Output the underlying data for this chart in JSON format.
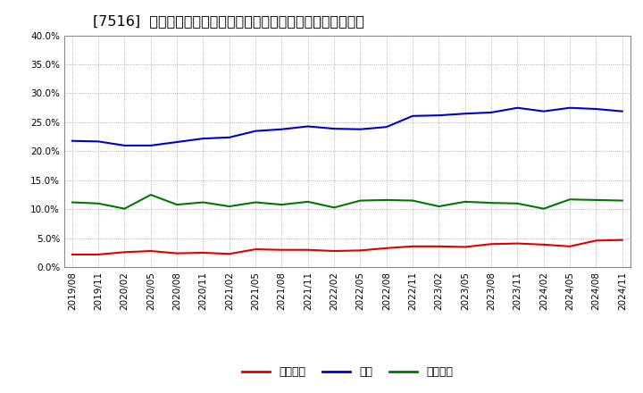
{
  "title": "[7516]  売上債権、在庫、買入債務の総資産に対する比率の推移",
  "x_labels": [
    "2019/08",
    "2019/11",
    "2020/02",
    "2020/05",
    "2020/08",
    "2020/11",
    "2021/02",
    "2021/05",
    "2021/08",
    "2021/11",
    "2022/02",
    "2022/05",
    "2022/08",
    "2022/11",
    "2023/02",
    "2023/05",
    "2023/08",
    "2023/11",
    "2024/02",
    "2024/05",
    "2024/08",
    "2024/11"
  ],
  "receivables": [
    2.2,
    2.2,
    2.6,
    2.8,
    2.4,
    2.5,
    2.3,
    3.1,
    3.0,
    3.0,
    2.8,
    2.9,
    3.3,
    3.6,
    3.6,
    3.5,
    4.0,
    4.1,
    3.9,
    3.6,
    4.6,
    4.7
  ],
  "inventory": [
    21.8,
    21.7,
    21.0,
    21.0,
    21.6,
    22.2,
    22.4,
    23.5,
    23.8,
    24.3,
    23.9,
    23.8,
    24.2,
    26.1,
    26.2,
    26.5,
    26.7,
    27.5,
    26.9,
    27.5,
    27.3,
    26.9
  ],
  "payables": [
    11.2,
    11.0,
    10.1,
    12.5,
    10.8,
    11.2,
    10.5,
    11.2,
    10.8,
    11.3,
    10.3,
    11.5,
    11.6,
    11.5,
    10.5,
    11.3,
    11.1,
    11.0,
    10.1,
    11.7,
    11.6,
    11.5
  ],
  "receivables_color": "#dd0000",
  "inventory_color": "#0000cc",
  "payables_color": "#007700",
  "ylim": [
    0,
    40
  ],
  "yticks": [
    0.0,
    5.0,
    10.0,
    15.0,
    20.0,
    25.0,
    30.0,
    35.0,
    40.0
  ],
  "legend_labels": [
    "売上債権",
    "在庫",
    "買入債務"
  ],
  "bg_color": "#ffffff",
  "grid_color": "#999999",
  "title_fontsize": 11.5,
  "tick_fontsize": 7.5,
  "legend_fontsize": 9
}
